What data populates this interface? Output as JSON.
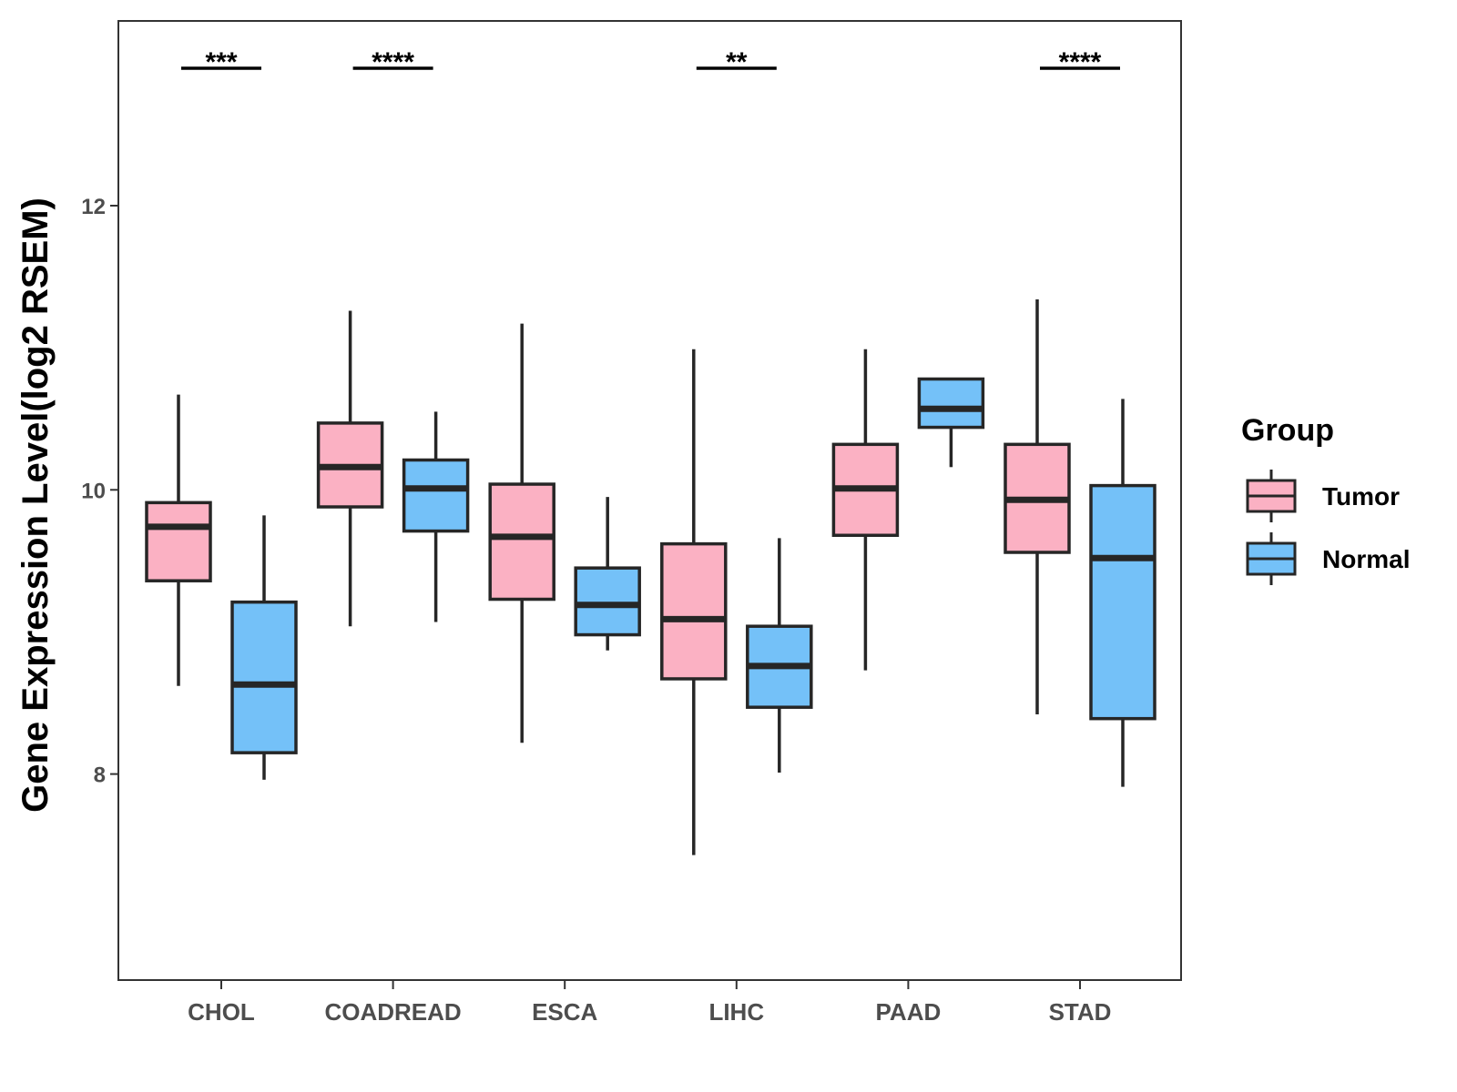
{
  "chart_data": {
    "type": "boxplot",
    "title": "",
    "xlabel": "",
    "ylabel": "Gene Expression Level(log2 RSEM)",
    "ylim": [
      6.55,
      13.3
    ],
    "yticks": [
      8,
      10,
      12
    ],
    "grid": false,
    "legend": {
      "title": "Group",
      "position": "right",
      "entries": [
        {
          "name": "Tumor",
          "color": "#FBB1C3"
        },
        {
          "name": "Normal",
          "color": "#74C1F8"
        }
      ]
    },
    "categories": [
      "CHOL",
      "COADREAD",
      "ESCA",
      "LIHC",
      "PAAD",
      "STAD"
    ],
    "series": [
      {
        "name": "Tumor",
        "color": "#FBB1C3",
        "boxes": [
          {
            "min": 8.62,
            "q1": 9.36,
            "median": 9.74,
            "q3": 9.91,
            "max": 10.67
          },
          {
            "min": 9.04,
            "q1": 9.88,
            "median": 10.16,
            "q3": 10.47,
            "max": 11.26
          },
          {
            "min": 8.22,
            "q1": 9.23,
            "median": 9.67,
            "q3": 10.04,
            "max": 11.17
          },
          {
            "min": 7.43,
            "q1": 8.67,
            "median": 9.09,
            "q3": 9.62,
            "max": 10.99
          },
          {
            "min": 8.73,
            "q1": 9.68,
            "median": 10.01,
            "q3": 10.32,
            "max": 10.99
          },
          {
            "min": 8.42,
            "q1": 9.56,
            "median": 9.93,
            "q3": 10.32,
            "max": 11.34
          }
        ]
      },
      {
        "name": "Normal",
        "color": "#74C1F8",
        "boxes": [
          {
            "min": 7.96,
            "q1": 8.15,
            "median": 8.63,
            "q3": 9.21,
            "max": 9.82
          },
          {
            "min": 9.07,
            "q1": 9.71,
            "median": 10.01,
            "q3": 10.21,
            "max": 10.55
          },
          {
            "min": 8.87,
            "q1": 8.98,
            "median": 9.19,
            "q3": 9.45,
            "max": 9.95
          },
          {
            "min": 8.01,
            "q1": 8.47,
            "median": 8.76,
            "q3": 9.04,
            "max": 9.66
          },
          {
            "min": 10.16,
            "q1": 10.44,
            "median": 10.57,
            "q3": 10.78,
            "max": 10.78
          },
          {
            "min": 7.91,
            "q1": 8.39,
            "median": 9.52,
            "q3": 10.03,
            "max": 10.64
          }
        ]
      }
    ],
    "significance": [
      {
        "category": "CHOL",
        "label": "***"
      },
      {
        "category": "COADREAD",
        "label": "****"
      },
      {
        "category": "LIHC",
        "label": "**"
      },
      {
        "category": "STAD",
        "label": "****"
      }
    ]
  }
}
